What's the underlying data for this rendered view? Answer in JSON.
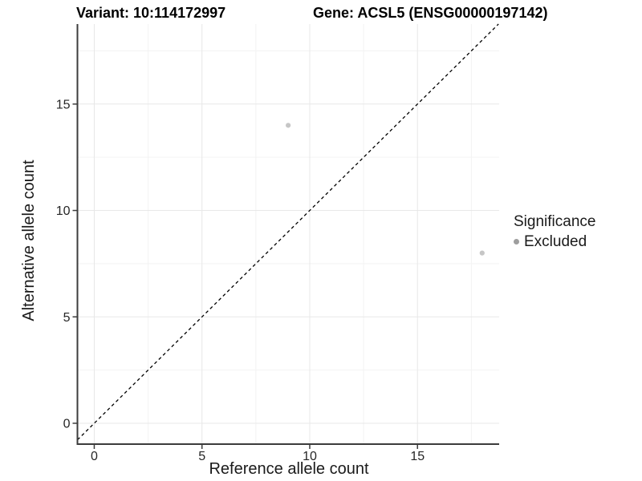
{
  "chart_data": {
    "type": "scatter",
    "titles": {
      "left": "Variant: 10:114172997",
      "right": "Gene: ACSL5 (ENSG00000197142)"
    },
    "xlabel": "Reference allele count",
    "ylabel": "Alternative allele count",
    "x_ticks": [
      0,
      5,
      10,
      15
    ],
    "y_ticks": [
      0,
      5,
      10,
      15
    ],
    "xlim": [
      -0.78,
      18.79
    ],
    "ylim": [
      -0.98,
      18.76
    ],
    "grid": {
      "major": true,
      "minor": true,
      "minor_step": 2.5
    },
    "reference_line": {
      "type": "identity",
      "slope": 1,
      "intercept": 0,
      "linestyle": "dashed"
    },
    "series": [
      {
        "name": "Excluded",
        "points": [
          [
            9,
            14
          ],
          [
            18,
            8
          ]
        ]
      }
    ],
    "legend": {
      "title": "Significance",
      "position": "right",
      "items": [
        {
          "label": "Excluded",
          "color": "#9e9e9e"
        }
      ]
    },
    "style": {
      "background": "#ffffff",
      "point_color": "#c6c6c6",
      "point_radius": 3.1,
      "legend_key_color": "#9e9e9e",
      "grid_major_color": "#e8e8e8",
      "grid_minor_color": "#f3f3f3",
      "axis_line_color": "#3c3c3c",
      "tick_color": "#3c3c3c",
      "tick_label_color": "#262626",
      "reference_line_color": "#000000"
    }
  }
}
